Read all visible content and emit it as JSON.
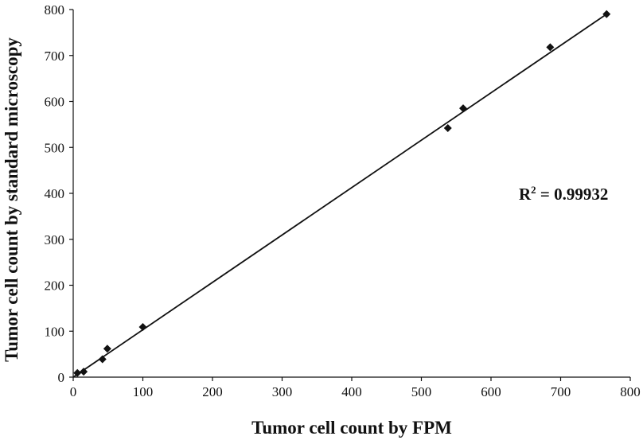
{
  "chart_data": {
    "type": "scatter",
    "title": "",
    "xlabel": "Tumor cell count by FPM",
    "ylabel": "Tumor cell count by standard microscopy",
    "xlim": [
      0,
      800
    ],
    "ylim": [
      0,
      800
    ],
    "x_ticks": [
      "0",
      "100",
      "200",
      "300",
      "400",
      "500",
      "600",
      "700",
      "800"
    ],
    "y_ticks": [
      "0",
      "100",
      "200",
      "300",
      "400",
      "500",
      "600",
      "700",
      "800"
    ],
    "grid": false,
    "legend": "none",
    "marker": "diamond",
    "marker_color": "#111111",
    "series": [
      {
        "points": [
          {
            "x": 6,
            "y": 9
          },
          {
            "x": 15,
            "y": 12
          },
          {
            "x": 42,
            "y": 39
          },
          {
            "x": 49,
            "y": 62
          },
          {
            "x": 100,
            "y": 109
          },
          {
            "x": 538,
            "y": 542
          },
          {
            "x": 560,
            "y": 585
          },
          {
            "x": 685,
            "y": 718
          },
          {
            "x": 766,
            "y": 790
          }
        ]
      }
    ],
    "trendline": {
      "type": "linear",
      "x_from": 0,
      "y_from": 0,
      "x_to": 766,
      "y_to": 790
    },
    "annotation": {
      "prefix": "R",
      "superscript": "2",
      "value": " = 0.99932"
    }
  }
}
